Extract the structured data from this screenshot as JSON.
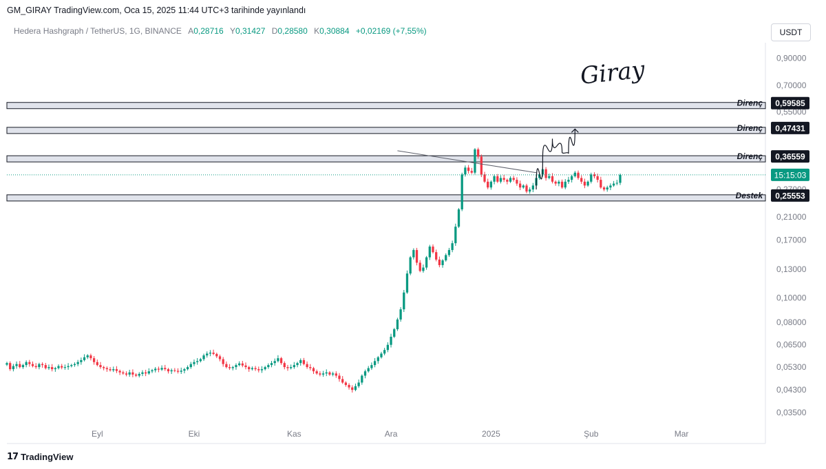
{
  "header": {
    "publish_line": "GM_GIRAY TradingView.com, Oca 15, 2025 11:44 UTC+3 tarihinde yayınlandı",
    "symbol": "Hedera Hashgraph / TetherUS, 1G, BINANCE",
    "open_label": "A",
    "open_value": "0,28716",
    "high_label": "Y",
    "high_value": "0,31427",
    "low_label": "D",
    "low_value": "0,28580",
    "close_label": "K",
    "close_value": "0,30884",
    "change": "+0,02169 (+7,55%)",
    "currency": "USDT"
  },
  "footer": {
    "brand": "TradingView"
  },
  "signature_text": "Giray",
  "colors": {
    "up": "#089981",
    "down": "#f23645",
    "axis_text": "#787b86",
    "zone_fill": "#e0e3eb",
    "label_bg": "#131722",
    "countdown_bg": "#089981"
  },
  "chart_data": {
    "type": "candlestick",
    "scale": "log",
    "ylim": [
      0.031,
      1.05
    ],
    "y_ticks": [
      {
        "value": 0.035,
        "label": "0,03500"
      },
      {
        "value": 0.043,
        "label": "0,04300"
      },
      {
        "value": 0.053,
        "label": "0,05300"
      },
      {
        "value": 0.065,
        "label": "0,06500"
      },
      {
        "value": 0.08,
        "label": "0,08000"
      },
      {
        "value": 0.1,
        "label": "0,10000"
      },
      {
        "value": 0.13,
        "label": "0,13000"
      },
      {
        "value": 0.17,
        "label": "0,17000"
      },
      {
        "value": 0.21,
        "label": "0,21000"
      },
      {
        "value": 0.27,
        "label": "0,27000"
      },
      {
        "value": 0.55,
        "label": "0,55000"
      },
      {
        "value": 0.7,
        "label": "0,70000"
      },
      {
        "value": 0.9,
        "label": "0,90000"
      }
    ],
    "x_ticks": [
      {
        "date": "2024-09-01",
        "label": "Eyl"
      },
      {
        "date": "2024-10-01",
        "label": "Eki"
      },
      {
        "date": "2024-11-01",
        "label": "Kas"
      },
      {
        "date": "2024-12-01",
        "label": "Ara"
      },
      {
        "date": "2025-01-01",
        "label": "2025"
      },
      {
        "date": "2025-02-01",
        "label": "Şub"
      },
      {
        "date": "2025-03-01",
        "label": "Mar"
      }
    ],
    "x_range": [
      "2024-08-04",
      "2025-03-27"
    ],
    "series": [
      {
        "start": "2024-08-04",
        "interval": "1D",
        "close": [
          0.055,
          0.052,
          0.0535,
          0.0545,
          0.053,
          0.054,
          0.0555,
          0.0545,
          0.0535,
          0.053,
          0.0545,
          0.054,
          0.0525,
          0.053,
          0.052,
          0.0525,
          0.0535,
          0.0528,
          0.053,
          0.0535,
          0.054,
          0.0545,
          0.0555,
          0.0565,
          0.058,
          0.059,
          0.0575,
          0.0555,
          0.054,
          0.053,
          0.0525,
          0.052,
          0.0515,
          0.052,
          0.0512,
          0.0505,
          0.05,
          0.0495,
          0.0505,
          0.0495,
          0.049,
          0.0498,
          0.0505,
          0.05,
          0.051,
          0.0515,
          0.0522,
          0.0518,
          0.0526,
          0.052,
          0.051,
          0.0515,
          0.0512,
          0.0508,
          0.0513,
          0.052,
          0.053,
          0.0545,
          0.0555,
          0.056,
          0.057,
          0.059,
          0.06,
          0.0605,
          0.0598,
          0.0585,
          0.057,
          0.0545,
          0.053,
          0.0525,
          0.053,
          0.054,
          0.0548,
          0.0538,
          0.053,
          0.052,
          0.0525,
          0.052,
          0.0515,
          0.052,
          0.053,
          0.054,
          0.055,
          0.056,
          0.0575,
          0.055,
          0.053,
          0.0525,
          0.053,
          0.054,
          0.055,
          0.0565,
          0.0545,
          0.053,
          0.0525,
          0.051,
          0.05,
          0.0495,
          0.05,
          0.0505,
          0.0495,
          0.05,
          0.049,
          0.0475,
          0.046,
          0.045,
          0.044,
          0.043,
          0.0445,
          0.046,
          0.049,
          0.051,
          0.0525,
          0.054,
          0.056,
          0.058,
          0.06,
          0.062,
          0.065,
          0.07,
          0.075,
          0.082,
          0.09,
          0.105,
          0.125,
          0.145,
          0.155,
          0.138,
          0.128,
          0.132,
          0.145,
          0.16,
          0.152,
          0.142,
          0.135,
          0.141,
          0.148,
          0.155,
          0.165,
          0.192,
          0.225,
          0.31,
          0.33,
          0.32,
          0.315,
          0.39,
          0.365,
          0.31,
          0.29,
          0.275,
          0.29,
          0.305,
          0.29,
          0.3,
          0.295,
          0.29,
          0.3,
          0.295,
          0.285,
          0.275,
          0.28,
          0.265,
          0.27,
          0.28,
          0.3,
          0.31,
          0.325,
          0.3,
          0.305,
          0.29,
          0.285,
          0.29,
          0.275,
          0.29,
          0.295,
          0.305,
          0.315,
          0.3,
          0.29,
          0.28,
          0.29,
          0.31,
          0.305,
          0.295,
          0.275,
          0.27,
          0.275,
          0.28,
          0.285,
          0.287,
          0.3088
        ]
      }
    ],
    "levels": [
      {
        "value": 0.59585,
        "label": "0,59585",
        "tag": "Direnç"
      },
      {
        "value": 0.47431,
        "label": "0,47431",
        "tag": "Direnç"
      },
      {
        "value": 0.36559,
        "label": "0,36559",
        "tag": "Direnç"
      },
      {
        "value": 0.25553,
        "label": "0,25553",
        "tag": "Destek"
      }
    ],
    "countdown": "15:15:03",
    "trendline": {
      "from": {
        "date": "2024-12-03",
        "value": 0.385
      },
      "to": {
        "date": "2025-01-15",
        "value": 0.315
      }
    },
    "projection": [
      {
        "date": "2025-01-15",
        "value": 0.27
      },
      {
        "date": "2025-01-17",
        "value": 0.36
      },
      {
        "date": "2025-01-20",
        "value": 0.43
      },
      {
        "date": "2025-01-23",
        "value": 0.38
      },
      {
        "date": "2025-01-25",
        "value": 0.375
      },
      {
        "date": "2025-01-27",
        "value": 0.47
      }
    ]
  }
}
